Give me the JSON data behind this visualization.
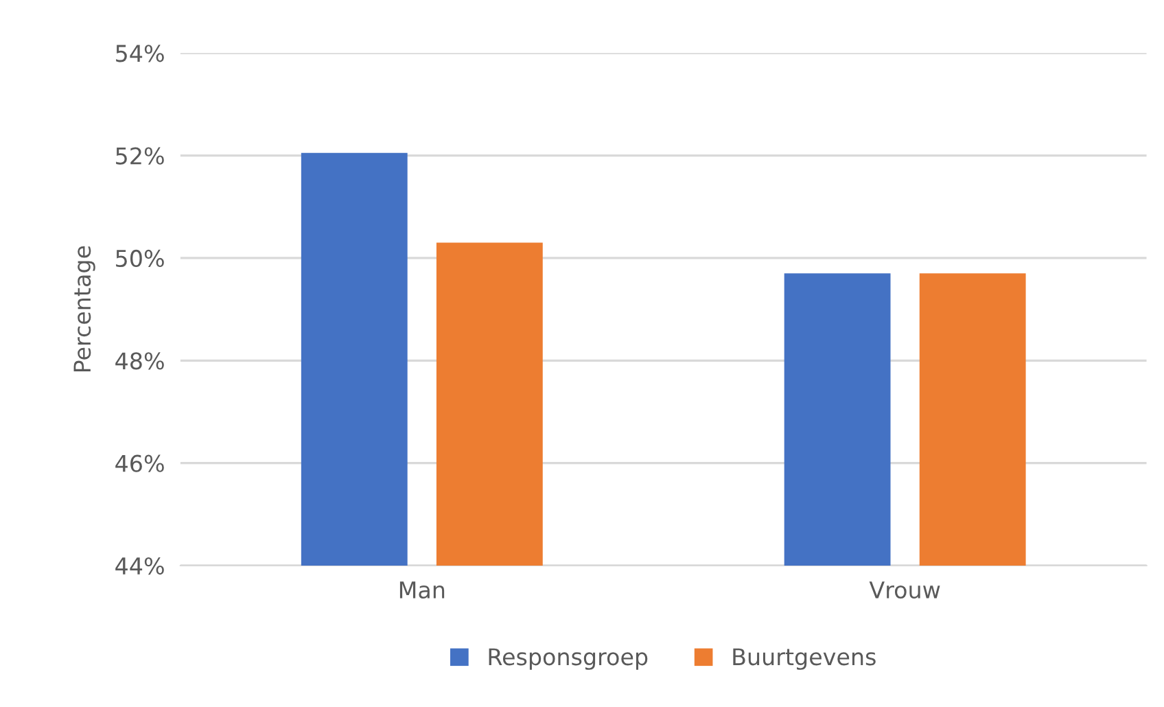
{
  "chart_data": {
    "type": "bar",
    "ylabel": "Percentage",
    "categories": [
      "Man",
      "Vrouw"
    ],
    "series": [
      {
        "name": "Responsgroep",
        "color": "#4472c4",
        "values": [
          52.05,
          49.7
        ]
      },
      {
        "name": "Buurtgevens",
        "color": "#ed7d31",
        "values": [
          50.3,
          49.7
        ]
      }
    ],
    "ylim": [
      44,
      54
    ],
    "yticks": [
      {
        "value": 44,
        "label": "44%"
      },
      {
        "value": 46,
        "label": "46%"
      },
      {
        "value": 48,
        "label": "48%"
      },
      {
        "value": 50,
        "label": "50%"
      },
      {
        "value": 52,
        "label": "52%"
      },
      {
        "value": 54,
        "label": "54%"
      }
    ],
    "grid": "y",
    "legend": "bottom"
  }
}
